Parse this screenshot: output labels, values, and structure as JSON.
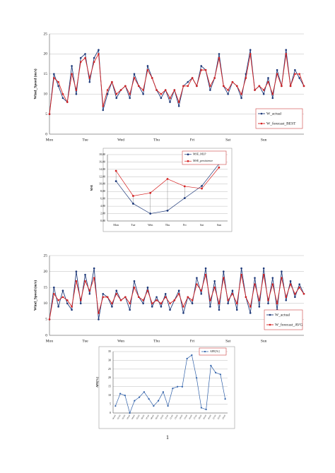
{
  "chart_data": [
    {
      "type": "line",
      "ylabel": "Wind_Speed (m/s)",
      "ylim": [
        0,
        25
      ],
      "yticks": [
        0,
        5,
        10,
        15,
        20,
        25
      ],
      "grid": true,
      "legend": "lower right",
      "categories": [
        "Mon",
        null,
        null,
        null,
        null,
        null,
        null,
        null,
        "Tue",
        null,
        null,
        null,
        null,
        null,
        null,
        null,
        "Wed",
        null,
        null,
        null,
        null,
        null,
        null,
        null,
        "Thu",
        null,
        null,
        null,
        null,
        null,
        null,
        null,
        "Fri",
        null,
        null,
        null,
        null,
        null,
        null,
        null,
        "Sat",
        null,
        null,
        null,
        null,
        null,
        null,
        null,
        "Sun",
        null,
        null,
        null,
        null,
        null,
        null,
        null,
        null,
        null
      ],
      "series": [
        {
          "name": "W_actual",
          "color": "#1f3a7a",
          "values": [
            5,
            15,
            12,
            9,
            8,
            17,
            10,
            19,
            20,
            13,
            19,
            21,
            6,
            10,
            13,
            9,
            11,
            12,
            9,
            15,
            12,
            10,
            17,
            14,
            11,
            9,
            11,
            8,
            11,
            7,
            12,
            13,
            14,
            12,
            17,
            16,
            11,
            14,
            20,
            12,
            10,
            13,
            12,
            9,
            15,
            21,
            11,
            12,
            10,
            14,
            9,
            16,
            12,
            21,
            12,
            16,
            14,
            12
          ]
        },
        {
          "name": "W_forecast_BEST",
          "color": "#d42020",
          "values": [
            5,
            14,
            13,
            10,
            8,
            15,
            11,
            18,
            19,
            14,
            18,
            20,
            7,
            11,
            13,
            10,
            11,
            12,
            10,
            14,
            12,
            11,
            16,
            14,
            11,
            10,
            11,
            9,
            11,
            8,
            12,
            12,
            14,
            12,
            16,
            16,
            12,
            14,
            19,
            12,
            11,
            13,
            12,
            10,
            14,
            20,
            11,
            12,
            11,
            13,
            10,
            15,
            12,
            20,
            12,
            15,
            15,
            12
          ]
        }
      ]
    },
    {
      "type": "line",
      "ylabel": "MSE",
      "ylim": [
        0,
        18
      ],
      "grid": true,
      "legend": "upper right",
      "hilo": true,
      "yticks": [
        {
          "value": 0,
          "label": "0,00"
        },
        {
          "value": 2,
          "label": "2,00"
        },
        {
          "value": 4,
          "label": "4,00"
        },
        {
          "value": 6,
          "label": "6,00"
        },
        {
          "value": 8,
          "label": "8,00"
        },
        {
          "value": 10,
          "label": "10,00"
        },
        {
          "value": 12,
          "label": "12,00"
        },
        {
          "value": 14,
          "label": "14,00"
        },
        {
          "value": 16,
          "label": "16,00"
        },
        {
          "value": 18,
          "label": "18,00"
        }
      ],
      "categories": [
        "Mon",
        "Tue",
        "Wen",
        "Thu",
        "Fri",
        "Sat",
        "Sun"
      ],
      "series": [
        {
          "name": "MSE_MLP",
          "color": "#1f3a7a",
          "values": [
            10.8,
            4.7,
            2.0,
            2.8,
            6.2,
            9.5,
            15.5
          ]
        },
        {
          "name": "MSE_persistence",
          "color": "#d42020",
          "values": [
            13.6,
            6.8,
            7.6,
            11.4,
            9.4,
            8.8,
            14.5
          ]
        }
      ]
    },
    {
      "type": "line",
      "ylabel": "Wind_Speed (m/s)",
      "ylim": [
        0,
        25
      ],
      "yticks": [
        0,
        5,
        10,
        15,
        20,
        25
      ],
      "grid": true,
      "legend": "lower right",
      "categories": [
        "Mon",
        null,
        null,
        null,
        null,
        null,
        null,
        null,
        "Tue",
        null,
        null,
        null,
        null,
        null,
        null,
        null,
        "Wen",
        null,
        null,
        null,
        null,
        null,
        null,
        null,
        "Thu",
        null,
        null,
        null,
        null,
        null,
        null,
        null,
        "Fri",
        null,
        null,
        null,
        null,
        null,
        null,
        null,
        "Sat",
        null,
        null,
        null,
        null,
        null,
        null,
        null,
        "Sun",
        null,
        null,
        null,
        null,
        null,
        null,
        null,
        null,
        null
      ],
      "series": [
        {
          "name": "W_actual",
          "color": "#1f3a7a",
          "values": [
            5,
            15,
            9,
            14,
            10,
            8,
            20,
            10,
            19,
            13,
            21,
            5,
            13,
            12,
            9,
            14,
            11,
            12,
            8,
            17,
            12,
            10,
            15,
            9,
            12,
            9,
            13,
            8,
            11,
            14,
            7,
            12,
            10,
            18,
            13,
            21,
            9,
            17,
            8,
            20,
            10,
            14,
            8,
            21,
            12,
            7,
            18,
            9,
            21,
            10,
            18,
            8,
            20,
            11,
            17,
            12,
            16,
            13
          ]
        },
        {
          "name": "W_forecast_AVG",
          "color": "#d42020",
          "values": [
            5,
            13,
            11,
            12,
            11,
            9,
            17,
            11,
            17,
            14,
            18,
            7,
            12,
            12,
            10,
            13,
            11,
            12,
            10,
            15,
            12,
            11,
            14,
            10,
            11,
            10,
            12,
            10,
            11,
            13,
            9,
            12,
            11,
            16,
            14,
            19,
            11,
            15,
            10,
            18,
            11,
            13,
            10,
            19,
            12,
            9,
            16,
            11,
            19,
            11,
            16,
            10,
            18,
            12,
            16,
            13,
            15,
            13
          ]
        }
      ]
    },
    {
      "type": "line",
      "ylabel": "APE[%]",
      "ylim": [
        0,
        35
      ],
      "yticks": [
        0,
        5,
        10,
        15,
        20,
        25,
        30,
        35
      ],
      "grid": true,
      "legend": "upper right",
      "categories": [
        "00:00",
        "01:00",
        "02:00",
        "03:00",
        "04:00",
        "05:00",
        "06:00",
        "07:00",
        "08:00",
        "09:00",
        "10:00",
        "11:00",
        "12:00",
        "13:00",
        "14:00",
        "15:00",
        "16:00",
        "17:00",
        "18:00",
        "19:00",
        "20:00",
        "21:00",
        "22:00",
        "23:00"
      ],
      "series": [
        {
          "name": "APE[%]",
          "color": "#2e5fa8",
          "values": [
            4,
            11,
            10,
            0,
            7,
            9,
            12,
            8,
            4,
            7,
            12,
            4,
            14,
            15,
            15,
            31,
            33,
            20,
            3,
            2,
            27,
            23,
            22,
            8
          ]
        }
      ]
    }
  ],
  "page_number": "1"
}
